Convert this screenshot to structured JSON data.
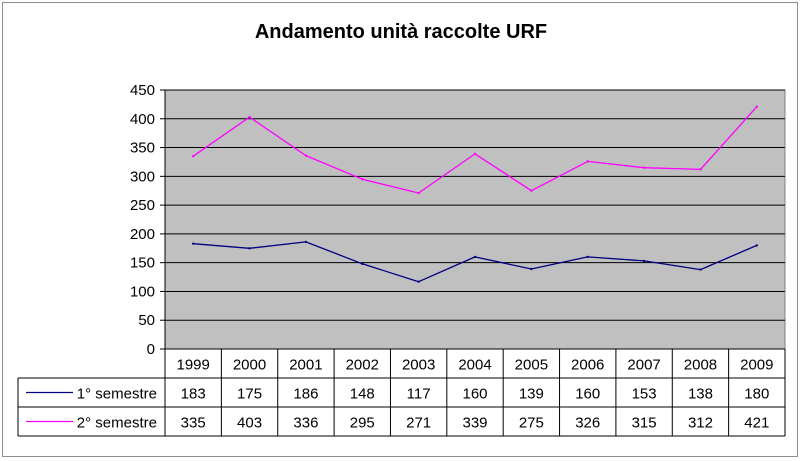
{
  "chart_data": {
    "type": "line",
    "title": "Andamento unità raccolte URF",
    "categories": [
      "1999",
      "2000",
      "2001",
      "2002",
      "2003",
      "2004",
      "2005",
      "2006",
      "2007",
      "2008",
      "2009"
    ],
    "series": [
      {
        "name": "1° semestre",
        "values": [
          183,
          175,
          186,
          148,
          117,
          160,
          139,
          160,
          153,
          138,
          180
        ],
        "color": "#000080"
      },
      {
        "name": "2° semestre",
        "values": [
          335,
          403,
          336,
          295,
          271,
          339,
          275,
          326,
          315,
          312,
          421
        ],
        "color": "#ff00ff"
      }
    ],
    "ylim": [
      0,
      450
    ],
    "yticks": [
      0,
      50,
      100,
      150,
      200,
      250,
      300,
      350,
      400,
      450
    ],
    "grid": true,
    "legend": "data-table-below",
    "plot_background": "#c0c0c0"
  }
}
